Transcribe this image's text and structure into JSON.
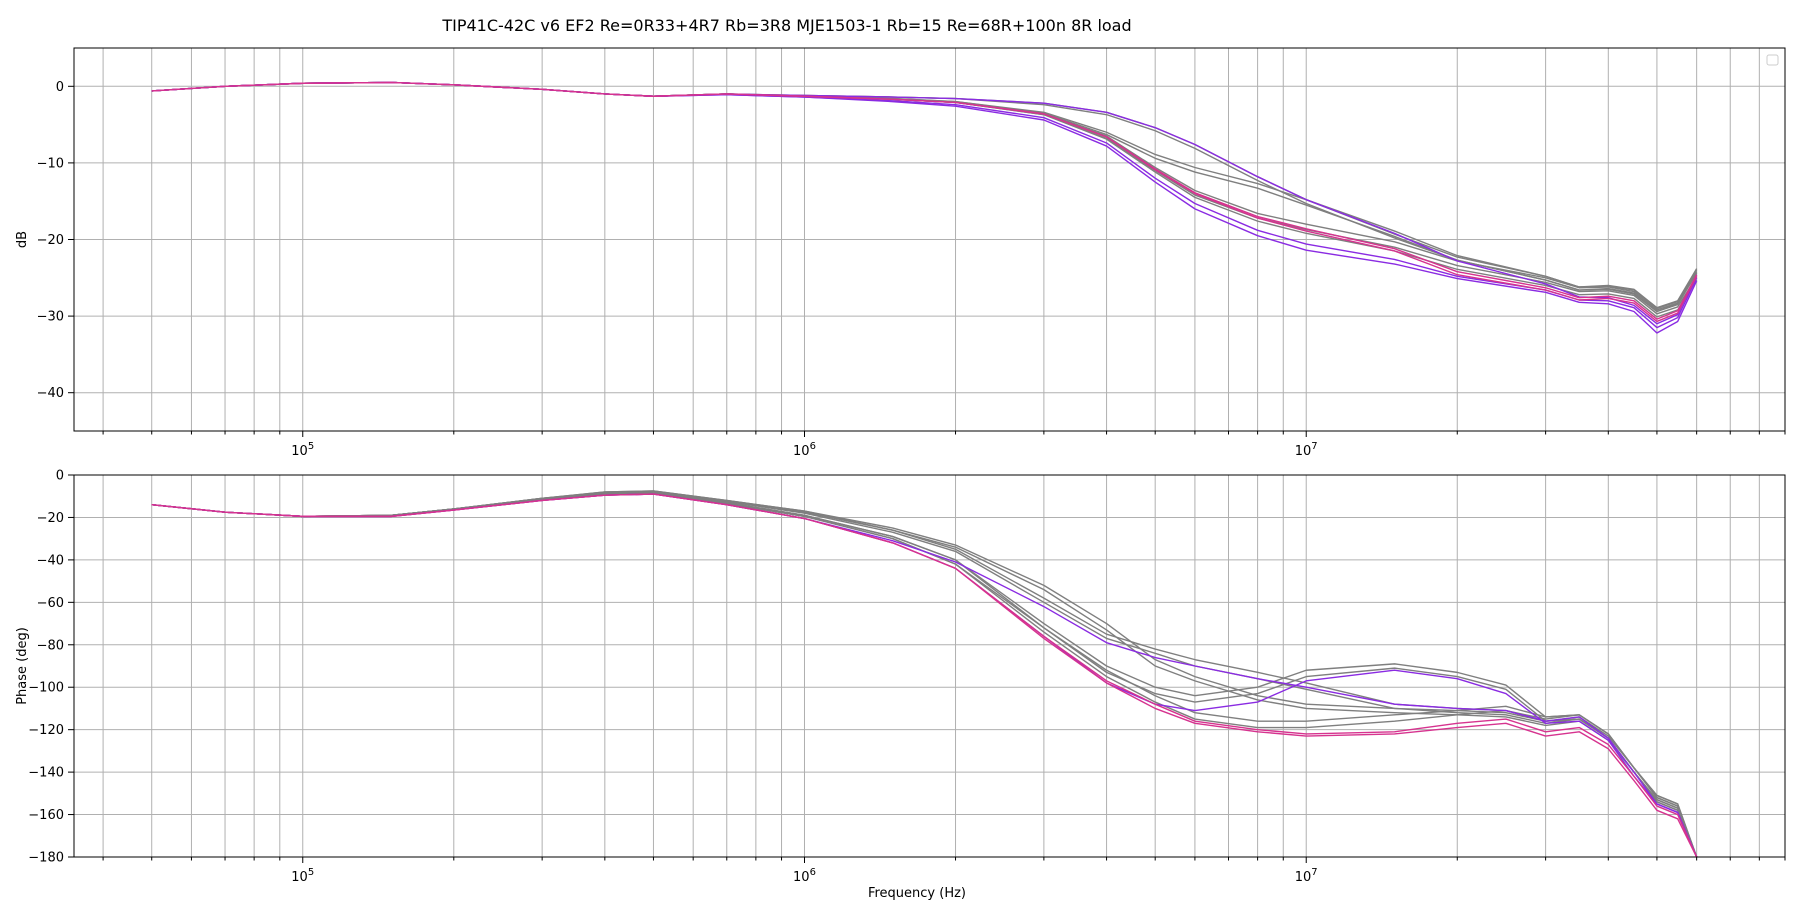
{
  "title": "TIP41C-42C v6 EF2 Re=0R33+4R7 Rb=3R8 MJE1503-1 Rb=15 Re=68R+100n 8R load",
  "chart_data": [
    {
      "type": "line",
      "panel": "magnitude",
      "ylabel": "dB",
      "xlabel": "",
      "xscale": "log",
      "xlim": [
        35000,
        90000000
      ],
      "ylim": [
        -45,
        5
      ],
      "yticks": [
        0,
        -10,
        -20,
        -30,
        -40
      ],
      "ytick_labels": [
        "0",
        "−10",
        "−20",
        "−30",
        "−40"
      ],
      "xticks": [
        100000,
        1000000,
        10000000
      ],
      "xtick_labels": [
        {
          "base": "10",
          "exp": "5"
        },
        {
          "base": "10",
          "exp": "6"
        },
        {
          "base": "10",
          "exp": "7"
        }
      ],
      "grid": true,
      "legend": "top-right (empty)",
      "x": [
        50000,
        70000,
        100000,
        150000,
        200000,
        300000,
        400000,
        500000,
        700000,
        1000000,
        1500000,
        2000000,
        3000000,
        4000000,
        5000000,
        6000000,
        8000000,
        10000000,
        15000000,
        20000000,
        30000000,
        35000000,
        40000000,
        45000000,
        50000000,
        55000000,
        60000000
      ],
      "series": [
        {
          "color": "#7f7f7f",
          "values": [
            -0.6,
            0.0,
            0.4,
            0.5,
            0.2,
            -0.4,
            -1.0,
            -1.3,
            -1.0,
            -1.2,
            -1.4,
            -1.6,
            -2.2,
            -3.4,
            -5.4,
            -7.6,
            -11.8,
            -14.8,
            -19.3,
            -22.3,
            -24.8,
            -26.2,
            -26.0,
            -26.5,
            -28.9,
            -28.0,
            -23.8
          ]
        },
        {
          "color": "#7f7f7f",
          "values": [
            -0.6,
            0.0,
            0.4,
            0.5,
            0.2,
            -0.4,
            -1.0,
            -1.3,
            -1.0,
            -1.2,
            -1.4,
            -1.6,
            -2.4,
            -3.7,
            -5.8,
            -8.1,
            -12.3,
            -15.3,
            -19.8,
            -22.7,
            -25.3,
            -26.6,
            -26.4,
            -27.0,
            -29.4,
            -28.4,
            -24.2
          ]
        },
        {
          "color": "#7f7f7f",
          "values": [
            -0.6,
            0.0,
            0.4,
            0.5,
            0.2,
            -0.4,
            -1.0,
            -1.3,
            -1.0,
            -1.3,
            -1.6,
            -2.0,
            -3.4,
            -6.0,
            -8.9,
            -10.6,
            -12.7,
            -14.8,
            -18.9,
            -22.1,
            -24.8,
            -26.2,
            -26.1,
            -26.6,
            -29.0,
            -28.1,
            -24.0
          ]
        },
        {
          "color": "#7f7f7f",
          "values": [
            -0.6,
            0.0,
            0.4,
            0.5,
            0.2,
            -0.4,
            -1.0,
            -1.3,
            -1.0,
            -1.3,
            -1.6,
            -2.0,
            -3.5,
            -6.3,
            -9.4,
            -11.2,
            -13.3,
            -15.5,
            -19.6,
            -22.7,
            -25.3,
            -26.6,
            -26.5,
            -27.1,
            -29.4,
            -28.5,
            -24.4
          ]
        },
        {
          "color": "#7f7f7f",
          "values": [
            -0.6,
            0.0,
            0.4,
            0.5,
            0.2,
            -0.4,
            -1.0,
            -1.3,
            -1.0,
            -1.3,
            -1.7,
            -2.1,
            -3.6,
            -6.5,
            -10.6,
            -13.6,
            -16.6,
            -18.0,
            -20.3,
            -22.8,
            -25.0,
            -26.3,
            -26.2,
            -26.8,
            -29.2,
            -28.3,
            -24.4
          ]
        },
        {
          "color": "#7f7f7f",
          "values": [
            -0.6,
            0.0,
            0.4,
            0.5,
            0.2,
            -0.4,
            -1.0,
            -1.3,
            -1.0,
            -1.3,
            -1.7,
            -2.1,
            -3.7,
            -6.8,
            -11.0,
            -14.2,
            -17.2,
            -18.7,
            -21.0,
            -23.4,
            -25.6,
            -26.8,
            -26.7,
            -27.3,
            -29.7,
            -28.8,
            -24.9
          ]
        },
        {
          "color": "#7f7f7f",
          "values": [
            -0.6,
            0.0,
            0.4,
            0.5,
            0.2,
            -0.4,
            -1.0,
            -1.3,
            -1.0,
            -1.3,
            -1.7,
            -2.1,
            -3.7,
            -6.9,
            -11.2,
            -14.5,
            -17.6,
            -19.2,
            -21.5,
            -23.9,
            -26.0,
            -27.2,
            -27.1,
            -27.7,
            -30.1,
            -29.2,
            -25.3
          ]
        },
        {
          "color": "#8a2be2",
          "values": [
            -0.6,
            0.0,
            0.4,
            0.5,
            0.2,
            -0.4,
            -1.0,
            -1.3,
            -1.0,
            -1.2,
            -1.4,
            -1.6,
            -2.2,
            -3.4,
            -5.4,
            -7.6,
            -11.8,
            -14.8,
            -19.2,
            -22.8,
            -25.8,
            -27.5,
            -27.6,
            -28.6,
            -31.0,
            -29.8,
            -24.6
          ]
        },
        {
          "color": "#8a2be2",
          "values": [
            -0.6,
            0.0,
            0.4,
            0.5,
            0.2,
            -0.4,
            -1.0,
            -1.3,
            -1.1,
            -1.4,
            -1.9,
            -2.4,
            -4.1,
            -7.4,
            -12.0,
            -15.3,
            -18.8,
            -20.6,
            -22.6,
            -24.8,
            -26.6,
            -27.9,
            -28.0,
            -28.9,
            -31.5,
            -30.2,
            -25.0
          ]
        },
        {
          "color": "#8a2be2",
          "values": [
            -0.6,
            0.0,
            0.4,
            0.5,
            0.2,
            -0.4,
            -1.0,
            -1.3,
            -1.1,
            -1.4,
            -2.0,
            -2.6,
            -4.4,
            -7.8,
            -12.5,
            -16.0,
            -19.5,
            -21.4,
            -23.2,
            -25.1,
            -26.9,
            -28.2,
            -28.4,
            -29.4,
            -32.2,
            -30.7,
            -25.4
          ]
        },
        {
          "color": "#d6338f",
          "values": [
            -0.6,
            0.0,
            0.4,
            0.5,
            0.2,
            -0.4,
            -1.0,
            -1.3,
            -1.0,
            -1.3,
            -1.7,
            -2.1,
            -3.6,
            -6.6,
            -10.8,
            -13.9,
            -17.0,
            -18.6,
            -21.2,
            -24.2,
            -26.3,
            -27.6,
            -27.4,
            -28.0,
            -30.4,
            -29.3,
            -24.6
          ]
        },
        {
          "color": "#d6338f",
          "values": [
            -0.6,
            0.0,
            0.4,
            0.5,
            0.2,
            -0.4,
            -1.0,
            -1.3,
            -1.0,
            -1.3,
            -1.7,
            -2.1,
            -3.6,
            -6.6,
            -10.9,
            -14.0,
            -17.2,
            -18.9,
            -21.5,
            -24.6,
            -26.6,
            -27.9,
            -27.7,
            -28.3,
            -30.7,
            -29.6,
            -24.8
          ]
        }
      ]
    },
    {
      "type": "line",
      "panel": "phase",
      "ylabel": "Phase (deg)",
      "xlabel": "Frequency (Hz)",
      "xscale": "log",
      "xlim": [
        35000,
        90000000
      ],
      "ylim": [
        -180,
        0
      ],
      "yticks": [
        0,
        -20,
        -40,
        -60,
        -80,
        -100,
        -120,
        -140,
        -160,
        -180
      ],
      "ytick_labels": [
        "0",
        "−20",
        "−40",
        "−60",
        "−80",
        "−100",
        "−120",
        "−140",
        "−160",
        "−180"
      ],
      "xticks": [
        100000,
        1000000,
        10000000
      ],
      "xtick_labels": [
        {
          "base": "10",
          "exp": "5"
        },
        {
          "base": "10",
          "exp": "6"
        },
        {
          "base": "10",
          "exp": "7"
        }
      ],
      "grid": true,
      "x": [
        50000,
        70000,
        100000,
        150000,
        200000,
        300000,
        400000,
        500000,
        700000,
        1000000,
        1500000,
        2000000,
        3000000,
        4000000,
        5000000,
        6000000,
        8000000,
        10000000,
        15000000,
        20000000,
        25000000,
        30000000,
        35000000,
        40000000,
        45000000,
        50000000,
        55000000,
        60000000
      ],
      "series": [
        {
          "color": "#7f7f7f",
          "values": [
            -14,
            -17.5,
            -19.5,
            -19,
            -16,
            -11,
            -8,
            -7.5,
            -12,
            -17,
            -25,
            -33,
            -52,
            -70,
            -87,
            -95,
            -104,
            -108,
            -110,
            -111,
            -112,
            -116,
            -114,
            -123,
            -138,
            -152,
            -156,
            -180
          ]
        },
        {
          "color": "#7f7f7f",
          "values": [
            -14,
            -17.5,
            -19.5,
            -19,
            -16,
            -11.5,
            -8.5,
            -8,
            -12.5,
            -17.5,
            -26,
            -34,
            -54,
            -73,
            -90,
            -97,
            -106,
            -110,
            -112,
            -113,
            -114,
            -118,
            -116,
            -125,
            -140,
            -154,
            -158,
            -180
          ]
        },
        {
          "color": "#7f7f7f",
          "values": [
            -14,
            -17.5,
            -19.5,
            -19,
            -16,
            -11,
            -8,
            -7.5,
            -12,
            -17,
            -26,
            -35,
            -58,
            -75,
            -82,
            -87,
            -93,
            -98,
            -108,
            -110,
            -111,
            -115,
            -113,
            -122,
            -138,
            -152,
            -156,
            -180
          ]
        },
        {
          "color": "#7f7f7f",
          "values": [
            -14,
            -17.5,
            -19.5,
            -19,
            -16,
            -11.5,
            -8.5,
            -8,
            -12.5,
            -18,
            -27,
            -36,
            -60,
            -77,
            -84,
            -90,
            -96,
            -101,
            -110,
            -112,
            -113,
            -117,
            -115,
            -124,
            -140,
            -154,
            -158,
            -180
          ]
        },
        {
          "color": "#7f7f7f",
          "values": [
            -14,
            -17.5,
            -19.5,
            -19,
            -16,
            -11,
            -8.5,
            -8,
            -13,
            -19,
            -29,
            -40,
            -70,
            -90,
            -100,
            -104,
            -100,
            -92,
            -89,
            -93,
            -99,
            -114,
            -113,
            -122,
            -138,
            -151,
            -155,
            -180
          ]
        },
        {
          "color": "#7f7f7f",
          "values": [
            -14,
            -17.5,
            -19.5,
            -19,
            -16,
            -11.5,
            -9,
            -8.5,
            -13.5,
            -19.5,
            -30,
            -42,
            -72,
            -93,
            -103,
            -107,
            -103,
            -95,
            -91,
            -95,
            -101,
            -116,
            -115,
            -124,
            -140,
            -153,
            -157,
            -180
          ]
        },
        {
          "color": "#7f7f7f",
          "values": [
            -14,
            -17.5,
            -19.5,
            -19,
            -16,
            -11,
            -8.5,
            -8,
            -13,
            -19,
            -29,
            -40,
            -72,
            -92,
            -104,
            -112,
            -116,
            -116,
            -113,
            -111,
            -109,
            -114,
            -113,
            -122,
            -138,
            -151,
            -155,
            -180
          ]
        },
        {
          "color": "#7f7f7f",
          "values": [
            -14,
            -17.5,
            -19.5,
            -19,
            -16,
            -11.5,
            -9,
            -8.5,
            -13.5,
            -19.5,
            -30,
            -42,
            -74,
            -95,
            -107,
            -115,
            -119,
            -119,
            -116,
            -113,
            -111,
            -116,
            -115,
            -124,
            -140,
            -153,
            -157,
            -180
          ]
        },
        {
          "color": "#8a2be2",
          "values": [
            -14,
            -17.5,
            -19.5,
            -19.5,
            -16.5,
            -12,
            -9.5,
            -9,
            -14,
            -20.5,
            -32,
            -44,
            -76,
            -98,
            -108,
            -111,
            -107,
            -97,
            -92,
            -96,
            -103,
            -117,
            -116,
            -125,
            -142,
            -155,
            -159,
            -180
          ]
        },
        {
          "color": "#8a2be2",
          "values": [
            -14,
            -17.5,
            -19.5,
            -19.5,
            -16.5,
            -12,
            -9.5,
            -9,
            -14,
            -20.5,
            -31,
            -41,
            -62,
            -79,
            -86,
            -90,
            -96,
            -100,
            -108,
            -110,
            -111,
            -116,
            -114,
            -124,
            -140,
            -155,
            -159,
            -180
          ]
        },
        {
          "color": "#d6338f",
          "values": [
            -14,
            -17.5,
            -19.5,
            -19.5,
            -16.5,
            -12,
            -9.5,
            -9,
            -14,
            -20.5,
            -32,
            -44,
            -76,
            -97,
            -108,
            -116,
            -120,
            -122,
            -121,
            -117,
            -115,
            -121,
            -119,
            -127,
            -142,
            -156,
            -160,
            -180
          ]
        },
        {
          "color": "#d6338f",
          "values": [
            -14,
            -17.5,
            -19.5,
            -19.5,
            -16.5,
            -12,
            -9.5,
            -9,
            -14,
            -20.5,
            -32,
            -44,
            -77,
            -98,
            -110,
            -117,
            -121,
            -123,
            -122,
            -119,
            -117,
            -123,
            -121,
            -129,
            -144,
            -158,
            -162,
            -180
          ]
        }
      ]
    }
  ]
}
